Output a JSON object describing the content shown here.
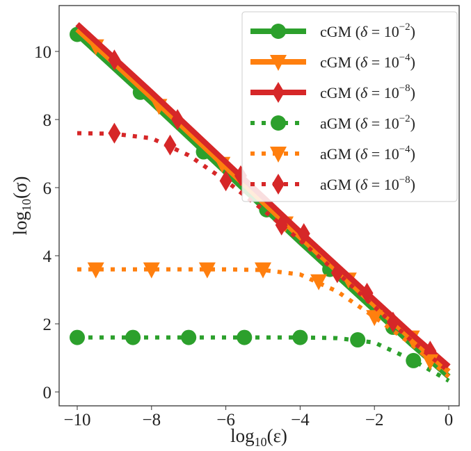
{
  "chart_data": {
    "type": "line",
    "xlabel": "log10(ε)",
    "ylabel": "log10(σ)",
    "xlim": [
      -10.5,
      0.3
    ],
    "ylim": [
      -0.4,
      11.3
    ],
    "xticks": [
      -10,
      -8,
      -6,
      -4,
      -2,
      0
    ],
    "yticks": [
      0,
      2,
      4,
      6,
      8,
      10
    ],
    "grid": false,
    "legend_position": "top-right",
    "series": [
      {
        "name": "cGM (δ = 10^-2)",
        "method": "cGM",
        "exp": "−2",
        "color": "#2ca02c",
        "style": "solid",
        "marker": "circle",
        "x": [
          -10,
          -8,
          -6,
          -4,
          -2,
          -1,
          0
        ],
        "y": [
          10.5,
          8.5,
          6.45,
          4.4,
          2.4,
          1.4,
          0.45
        ],
        "marker_x": [
          -10,
          -8.3,
          -6.6,
          -4.9,
          -3.2,
          -1.5
        ],
        "marker_y": [
          10.5,
          8.8,
          7.05,
          5.35,
          3.6,
          1.9
        ]
      },
      {
        "name": "cGM (δ = 10^-4)",
        "method": "cGM",
        "exp": "−4",
        "color": "#ff7f0e",
        "style": "solid",
        "marker": "triangle-down",
        "x": [
          -10,
          -8,
          -6,
          -4,
          -2,
          -1,
          0
        ],
        "y": [
          10.65,
          8.65,
          6.6,
          4.55,
          2.55,
          1.55,
          0.6
        ],
        "marker_x": [
          -9.5,
          -7.8,
          -6.1,
          -4.4,
          -2.7,
          -1.0
        ],
        "marker_y": [
          10.15,
          8.4,
          6.7,
          4.95,
          3.3,
          1.6
        ]
      },
      {
        "name": "cGM (δ = 10^-8)",
        "method": "cGM",
        "exp": "−8",
        "color": "#d62728",
        "style": "solid",
        "marker": "diamond",
        "x": [
          -10,
          -8,
          -6,
          -4,
          -2,
          -1,
          0
        ],
        "y": [
          10.8,
          8.8,
          6.75,
          4.7,
          2.7,
          1.7,
          0.75
        ],
        "marker_x": [
          -9,
          -7.3,
          -5.6,
          -3.9,
          -2.2,
          -0.5
        ],
        "marker_y": [
          9.75,
          8.0,
          6.35,
          4.65,
          2.9,
          1.2
        ]
      },
      {
        "name": "aGM (δ = 10^-2)",
        "method": "aGM",
        "exp": "−2",
        "color": "#2ca02c",
        "style": "dotted",
        "marker": "circle",
        "x": [
          -10,
          -8,
          -6,
          -4,
          -3,
          -2,
          -1,
          0
        ],
        "y": [
          1.6,
          1.6,
          1.6,
          1.6,
          1.58,
          1.45,
          0.95,
          0.33
        ],
        "marker_x": [
          -10,
          -8.5,
          -7,
          -5.5,
          -4,
          -2.45,
          -0.95
        ],
        "marker_y": [
          1.6,
          1.6,
          1.6,
          1.6,
          1.6,
          1.53,
          0.92
        ]
      },
      {
        "name": "aGM (δ = 10^-4)",
        "method": "aGM",
        "exp": "−4",
        "color": "#ff7f0e",
        "style": "dotted",
        "marker": "triangle-down",
        "x": [
          -10,
          -8,
          -6,
          -5,
          -4,
          -3,
          -2,
          -1,
          0
        ],
        "y": [
          3.6,
          3.6,
          3.6,
          3.58,
          3.45,
          2.95,
          2.2,
          1.4,
          0.45
        ],
        "marker_x": [
          -9.5,
          -8,
          -6.5,
          -5,
          -3.5,
          -2,
          -0.5
        ],
        "marker_y": [
          3.6,
          3.6,
          3.6,
          3.6,
          3.25,
          2.2,
          0.9
        ]
      },
      {
        "name": "aGM (δ = 10^-8)",
        "method": "aGM",
        "exp": "−8",
        "color": "#d62728",
        "style": "dotted",
        "marker": "diamond",
        "x": [
          -10,
          -9,
          -8,
          -7,
          -6,
          -5,
          -4,
          -3,
          -2,
          -1,
          0
        ],
        "y": [
          7.6,
          7.58,
          7.45,
          6.95,
          6.2,
          5.35,
          4.45,
          3.5,
          2.5,
          1.5,
          0.6
        ],
        "marker_x": [
          -9,
          -7.5,
          -6,
          -4.5,
          -3,
          -1.5
        ],
        "marker_y": [
          7.6,
          7.25,
          6.2,
          4.9,
          3.5,
          2.05
        ]
      }
    ]
  }
}
